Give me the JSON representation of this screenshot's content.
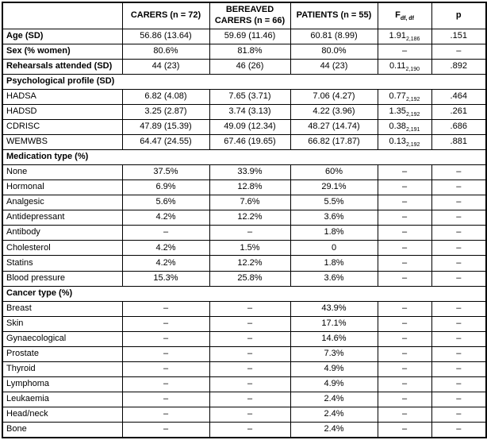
{
  "table": {
    "columns": {
      "row_label_header": "",
      "group1": "CARERS (n = 72)",
      "group2": "BEREAVED CARERS (n = 66)",
      "group3": "PATIENTS (n = 55)",
      "f_label": "F",
      "f_sub": "df, df",
      "p_label": "p"
    },
    "dash": "–",
    "rows": [
      {
        "type": "data",
        "bold_label": true,
        "label": "Age (SD)",
        "values": [
          "56.86 (13.64)",
          "59.69 (11.46)",
          "60.81 (8.99)"
        ],
        "f": "1.91",
        "f_sub": "2,186",
        "p": ".151"
      },
      {
        "type": "data",
        "bold_label": true,
        "label": "Sex (% women)",
        "values": [
          "80.6%",
          "81.8%",
          "80.0%"
        ],
        "f": "–",
        "f_sub": "",
        "p": "–"
      },
      {
        "type": "data",
        "bold_label": true,
        "label": "Rehearsals attended (SD)",
        "values": [
          "44 (23)",
          "46 (26)",
          "44 (23)"
        ],
        "f": "0.11",
        "f_sub": "2,190",
        "p": ".892"
      },
      {
        "type": "section",
        "label": "Psychological profile (SD)"
      },
      {
        "type": "data",
        "bold_label": false,
        "label": "HADSA",
        "values": [
          "6.82 (4.08)",
          "7.65 (3.71)",
          "7.06 (4.27)"
        ],
        "f": "0.77",
        "f_sub": "2,192",
        "p": ".464"
      },
      {
        "type": "data",
        "bold_label": false,
        "label": "HADSD",
        "values": [
          "3.25 (2.87)",
          "3.74 (3.13)",
          "4.22 (3.96)"
        ],
        "f": "1.35",
        "f_sub": "2,192",
        "p": ".261"
      },
      {
        "type": "data",
        "bold_label": false,
        "label": "CDRISC",
        "values": [
          "47.89 (15.39)",
          "49.09 (12.34)",
          "48.27 (14.74)"
        ],
        "f": "0.38",
        "f_sub": "2,191",
        "p": ".686"
      },
      {
        "type": "data",
        "bold_label": false,
        "label": "WEMWBS",
        "values": [
          "64.47 (24.55)",
          "67.46 (19.65)",
          "66.82 (17.87)"
        ],
        "f": "0.13",
        "f_sub": "2,192",
        "p": ".881"
      },
      {
        "type": "section",
        "label": "Medication type (%)"
      },
      {
        "type": "data",
        "bold_label": false,
        "label": "None",
        "values": [
          "37.5%",
          "33.9%",
          "60%"
        ],
        "f": "–",
        "f_sub": "",
        "p": "–"
      },
      {
        "type": "data",
        "bold_label": false,
        "label": "Hormonal",
        "values": [
          "6.9%",
          "12.8%",
          "29.1%"
        ],
        "f": "–",
        "f_sub": "",
        "p": "–"
      },
      {
        "type": "data",
        "bold_label": false,
        "label": "Analgesic",
        "values": [
          "5.6%",
          "7.6%",
          "5.5%"
        ],
        "f": "–",
        "f_sub": "",
        "p": "–"
      },
      {
        "type": "data",
        "bold_label": false,
        "label": "Antidepressant",
        "values": [
          "4.2%",
          "12.2%",
          "3.6%"
        ],
        "f": "–",
        "f_sub": "",
        "p": "–"
      },
      {
        "type": "data",
        "bold_label": false,
        "label": "Antibody",
        "values": [
          "–",
          "–",
          "1.8%"
        ],
        "f": "–",
        "f_sub": "",
        "p": "–"
      },
      {
        "type": "data",
        "bold_label": false,
        "label": "Cholesterol",
        "values": [
          "4.2%",
          "1.5%",
          "0"
        ],
        "f": "–",
        "f_sub": "",
        "p": "–"
      },
      {
        "type": "data",
        "bold_label": false,
        "label": "Statins",
        "values": [
          "4.2%",
          "12.2%",
          "1.8%"
        ],
        "f": "–",
        "f_sub": "",
        "p": "–"
      },
      {
        "type": "data",
        "bold_label": false,
        "label": "Blood pressure",
        "values": [
          "15.3%",
          "25.8%",
          "3.6%"
        ],
        "f": "–",
        "f_sub": "",
        "p": "–"
      },
      {
        "type": "section",
        "label": "Cancer type (%)"
      },
      {
        "type": "data",
        "bold_label": false,
        "label": "Breast",
        "values": [
          "–",
          "–",
          "43.9%"
        ],
        "f": "–",
        "f_sub": "",
        "p": "–"
      },
      {
        "type": "data",
        "bold_label": false,
        "label": "Skin",
        "values": [
          "–",
          "–",
          "17.1%"
        ],
        "f": "–",
        "f_sub": "",
        "p": "–"
      },
      {
        "type": "data",
        "bold_label": false,
        "label": "Gynaecological",
        "values": [
          "–",
          "–",
          "14.6%"
        ],
        "f": "–",
        "f_sub": "",
        "p": "–"
      },
      {
        "type": "data",
        "bold_label": false,
        "label": "Prostate",
        "values": [
          "–",
          "–",
          "7.3%"
        ],
        "f": "–",
        "f_sub": "",
        "p": "–"
      },
      {
        "type": "data",
        "bold_label": false,
        "label": "Thyroid",
        "values": [
          "–",
          "–",
          "4.9%"
        ],
        "f": "–",
        "f_sub": "",
        "p": "–"
      },
      {
        "type": "data",
        "bold_label": false,
        "label": "Lymphoma",
        "values": [
          "–",
          "–",
          "4.9%"
        ],
        "f": "–",
        "f_sub": "",
        "p": "–"
      },
      {
        "type": "data",
        "bold_label": false,
        "label": "Leukaemia",
        "values": [
          "–",
          "–",
          "2.4%"
        ],
        "f": "–",
        "f_sub": "",
        "p": "–"
      },
      {
        "type": "data",
        "bold_label": false,
        "label": "Head/neck",
        "values": [
          "–",
          "–",
          "2.4%"
        ],
        "f": "–",
        "f_sub": "",
        "p": "–"
      },
      {
        "type": "data",
        "bold_label": false,
        "label": "Bone",
        "values": [
          "–",
          "–",
          "2.4%"
        ],
        "f": "–",
        "f_sub": "",
        "p": "–"
      }
    ],
    "colors": {
      "border": "#000000",
      "text": "#000000",
      "background": "#ffffff"
    }
  }
}
